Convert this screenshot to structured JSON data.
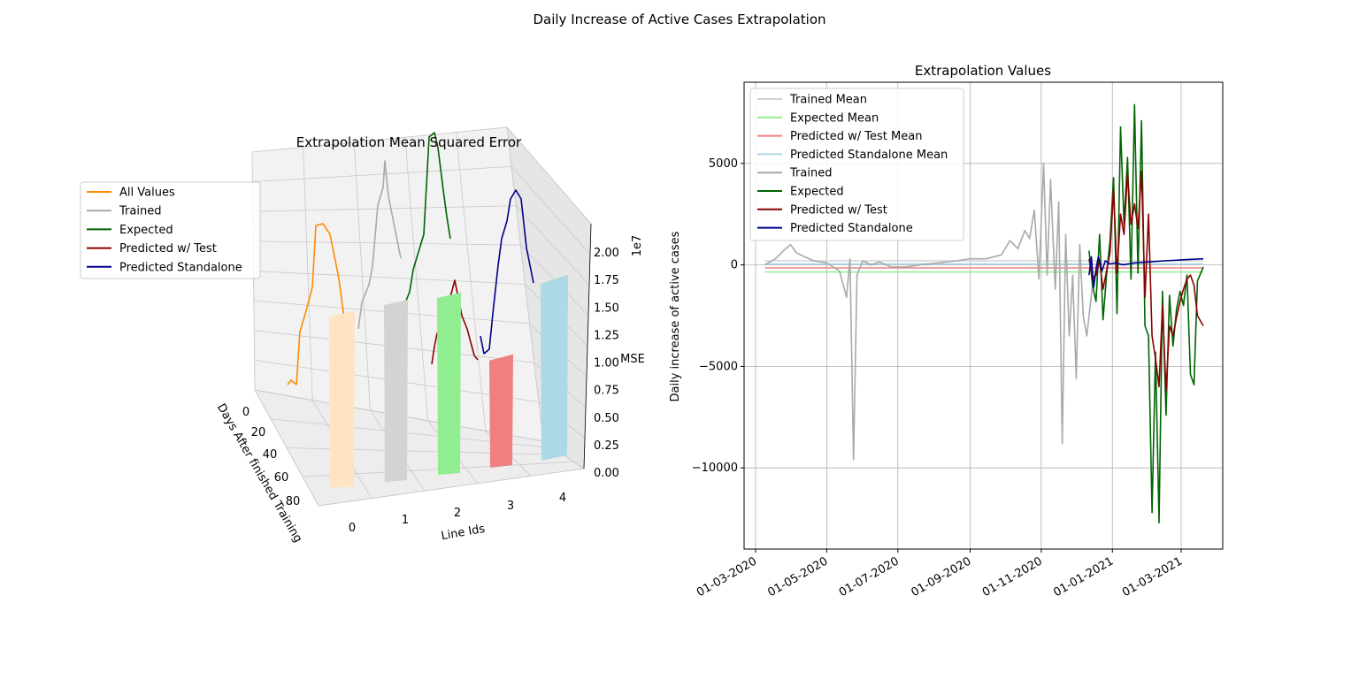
{
  "suptitle": "Daily Increase of Active Cases Extrapolation",
  "chart_data": [
    {
      "type": "bar",
      "subtype": "3d-bars-with-lines",
      "title": "Extrapolation Mean Squared Error",
      "xlabel": "Line Ids",
      "ylabel": "Days After finished Training",
      "zlabel": "MSE",
      "z_offset_label": "1e7",
      "x_ticks": [
        "0",
        "1",
        "2",
        "3",
        "4"
      ],
      "y_ticks": [
        "0",
        "20",
        "40",
        "60",
        "80"
      ],
      "z_ticks": [
        "0.00",
        "0.25",
        "0.50",
        "0.75",
        "1.00",
        "1.25",
        "1.50",
        "1.75",
        "2.00"
      ],
      "zlim": [
        0,
        22000000
      ],
      "legend": {
        "placement": "left",
        "entries": [
          {
            "name": "All Values",
            "color": "#ff8c00"
          },
          {
            "name": "Trained",
            "color": "#a9a9a9"
          },
          {
            "name": "Expected",
            "color": "#006400"
          },
          {
            "name": "Predicted w/ Test",
            "color": "#8b0000"
          },
          {
            "name": "Predicted Standalone",
            "color": "#00008b"
          }
        ]
      },
      "bars": [
        {
          "line_id": 0,
          "value": 16000000,
          "color": "#ffe4c4"
        },
        {
          "line_id": 1,
          "value": 16500000,
          "color": "#d3d3d3"
        },
        {
          "line_id": 2,
          "value": 16500000,
          "color": "#90ee90"
        },
        {
          "line_id": 3,
          "value": 10000000,
          "color": "#f08080"
        },
        {
          "line_id": 4,
          "value": 16500000,
          "color": "#add8e6"
        }
      ]
    },
    {
      "type": "line",
      "title": "Extrapolation Values",
      "xlabel": "",
      "ylabel": "Daily increase of active cases",
      "x_ticks": [
        "01-03-2020",
        "01-05-2020",
        "01-07-2020",
        "01-09-2020",
        "01-11-2020",
        "01-01-2021",
        "01-03-2021"
      ],
      "y_ticks": [
        "−10000",
        "−5000",
        "0",
        "5000"
      ],
      "ylim": [
        -14000,
        9000
      ],
      "grid": true,
      "legend": {
        "placement": "top-left",
        "entries": [
          {
            "name": "Trained Mean",
            "color": "#d3d3d3"
          },
          {
            "name": "Expected Mean",
            "color": "#90ee90"
          },
          {
            "name": "Predicted w/ Test Mean",
            "color": "#f08080"
          },
          {
            "name": "Predicted Standalone Mean",
            "color": "#add8e6"
          },
          {
            "name": "Trained",
            "color": "#a9a9a9"
          },
          {
            "name": "Expected",
            "color": "#006400"
          },
          {
            "name": "Predicted w/ Test",
            "color": "#8b0000"
          },
          {
            "name": "Predicted Standalone",
            "color": "#00008b"
          }
        ]
      },
      "means": [
        {
          "name": "Trained Mean",
          "value": 200,
          "start": "2020-03-09",
          "end": "2021-03-20"
        },
        {
          "name": "Expected Mean",
          "value": -350,
          "start": "2020-03-09",
          "end": "2021-03-20"
        },
        {
          "name": "Predicted w/ Test Mean",
          "value": -150,
          "start": "2020-03-09",
          "end": "2021-03-20"
        },
        {
          "name": "Predicted Standalone Mean",
          "value": 50,
          "start": "2020-03-09",
          "end": "2021-03-20"
        }
      ],
      "series": [
        {
          "name": "Trained",
          "color": "#a9a9a9",
          "x": [
            "2020-03-09",
            "2020-03-18",
            "2020-03-25",
            "2020-03-31",
            "2020-04-05",
            "2020-04-12",
            "2020-04-20",
            "2020-05-01",
            "2020-05-12",
            "2020-05-18",
            "2020-05-21",
            "2020-05-24",
            "2020-05-27",
            "2020-06-01",
            "2020-06-08",
            "2020-06-15",
            "2020-06-25",
            "2020-07-08",
            "2020-07-20",
            "2020-08-05",
            "2020-08-20",
            "2020-09-01",
            "2020-09-15",
            "2020-09-28",
            "2020-10-05",
            "2020-10-12",
            "2020-10-18",
            "2020-10-22",
            "2020-10-26",
            "2020-10-30",
            "2020-11-03",
            "2020-11-06",
            "2020-11-09",
            "2020-11-13",
            "2020-11-16",
            "2020-11-19",
            "2020-11-22",
            "2020-11-25",
            "2020-11-28",
            "2020-12-01",
            "2020-12-04",
            "2020-12-07",
            "2020-12-10",
            "2020-12-13",
            "2020-12-16"
          ],
          "y": [
            0,
            300,
            700,
            1000,
            600,
            400,
            200,
            100,
            -300,
            -1600,
            300,
            -9600,
            -500,
            200,
            0,
            150,
            -100,
            -100,
            0,
            100,
            200,
            300,
            300,
            500,
            1200,
            800,
            1700,
            1300,
            2700,
            -700,
            5000,
            -500,
            4200,
            -1200,
            3100,
            -8800,
            1500,
            -3500,
            -500,
            -5600,
            1000,
            -2500,
            -3500,
            -2000,
            -500
          ]
        },
        {
          "name": "Expected",
          "color": "#006400",
          "x": [
            "2020-12-12",
            "2020-12-15",
            "2020-12-18",
            "2020-12-21",
            "2020-12-24",
            "2020-12-27",
            "2020-12-30",
            "2021-01-02",
            "2021-01-05",
            "2021-01-08",
            "2021-01-11",
            "2021-01-14",
            "2021-01-17",
            "2021-01-20",
            "2021-01-23",
            "2021-01-26",
            "2021-01-29",
            "2021-02-01",
            "2021-02-04",
            "2021-02-07",
            "2021-02-10",
            "2021-02-13",
            "2021-02-16",
            "2021-02-19",
            "2021-02-22",
            "2021-02-25",
            "2021-02-28",
            "2021-03-03",
            "2021-03-06",
            "2021-03-09",
            "2021-03-12",
            "2021-03-15",
            "2021-03-20"
          ],
          "y": [
            700,
            -1000,
            -1800,
            1500,
            -2700,
            -500,
            1200,
            4300,
            -2400,
            6800,
            2000,
            5300,
            -700,
            7900,
            -400,
            7100,
            -3000,
            -3500,
            -12200,
            -4300,
            -12700,
            -1300,
            -7400,
            -1500,
            -4000,
            -2200,
            -1300,
            -2000,
            -500,
            -5400,
            -5900,
            -800,
            -100
          ]
        },
        {
          "name": "Predicted w/ Test",
          "color": "#8b0000",
          "x": [
            "2020-12-12",
            "2020-12-15",
            "2020-12-18",
            "2020-12-21",
            "2020-12-24",
            "2020-12-27",
            "2020-12-30",
            "2021-01-02",
            "2021-01-05",
            "2021-01-08",
            "2021-01-11",
            "2021-01-14",
            "2021-01-17",
            "2021-01-20",
            "2021-01-23",
            "2021-01-26",
            "2021-01-29",
            "2021-02-01",
            "2021-02-04",
            "2021-02-07",
            "2021-02-10",
            "2021-02-13",
            "2021-02-16",
            "2021-02-19",
            "2021-02-22",
            "2021-02-25",
            "2021-02-28",
            "2021-03-03",
            "2021-03-06",
            "2021-03-09",
            "2021-03-12",
            "2021-03-15",
            "2021-03-20"
          ],
          "y": [
            300,
            -700,
            -500,
            200,
            -1200,
            -300,
            600,
            3700,
            -400,
            2500,
            1500,
            4500,
            2000,
            3000,
            1800,
            4600,
            -1600,
            2500,
            -3500,
            -4600,
            -6000,
            -2000,
            -6200,
            -3000,
            -3500,
            -2600,
            -1800,
            -1200,
            -700,
            -500,
            -1000,
            -2500,
            -3000
          ]
        },
        {
          "name": "Predicted Standalone",
          "color": "#00008b",
          "x": [
            "2020-12-12",
            "2020-12-14",
            "2020-12-16",
            "2020-12-18",
            "2020-12-20",
            "2020-12-23",
            "2020-12-26",
            "2020-12-30",
            "2021-01-04",
            "2021-01-10",
            "2021-01-20",
            "2021-02-01",
            "2021-02-15",
            "2021-03-01",
            "2021-03-20"
          ],
          "y": [
            -500,
            400,
            -1100,
            -200,
            400,
            -300,
            200,
            50,
            100,
            0,
            100,
            150,
            200,
            250,
            300
          ]
        }
      ]
    }
  ]
}
